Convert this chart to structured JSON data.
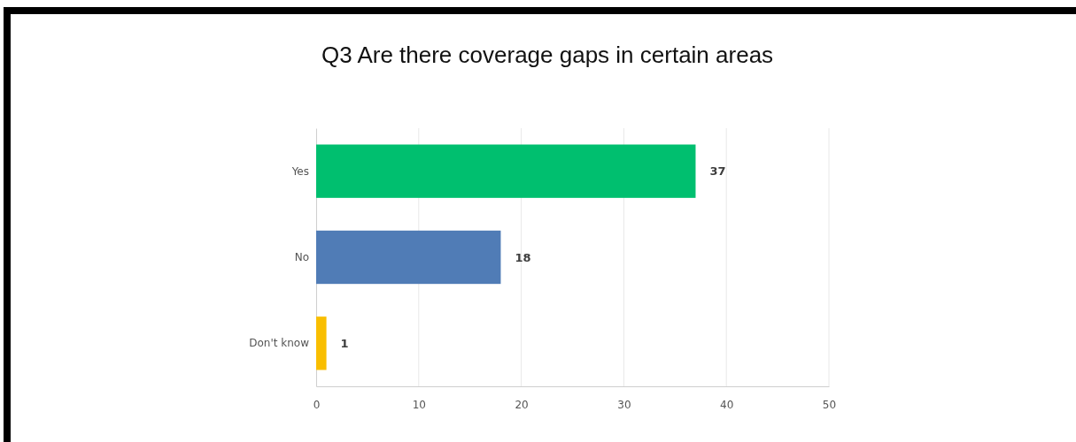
{
  "chart_data": {
    "type": "bar",
    "orientation": "horizontal",
    "title": "Q3 Are there coverage gaps in certain areas",
    "categories": [
      "Yes",
      "No",
      "Don't know"
    ],
    "values": [
      37,
      18,
      1
    ],
    "colors": [
      "#00bf6f",
      "#507cb6",
      "#f9be00"
    ],
    "xlim": [
      0,
      50
    ],
    "xticks": [
      0,
      10,
      20,
      30,
      40,
      50
    ],
    "grid": "x",
    "data_labels": true
  }
}
